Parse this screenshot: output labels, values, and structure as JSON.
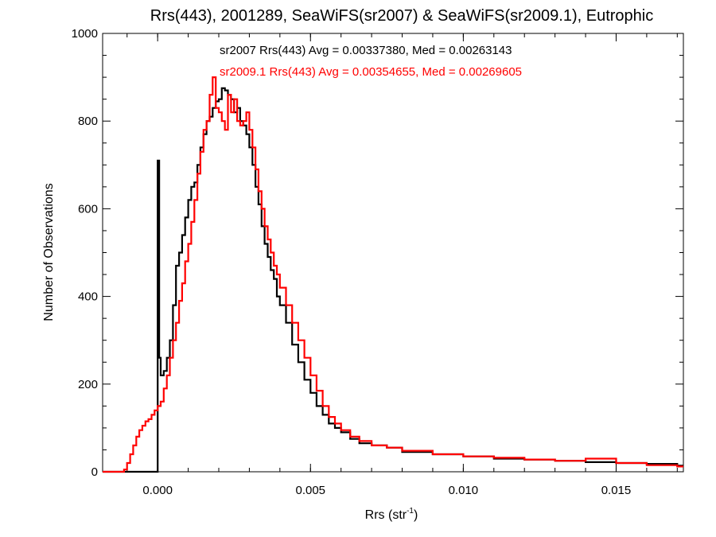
{
  "chart_data": {
    "type": "histogram",
    "title": "Rrs(443), 2001289, SeaWiFS(sr2007) & SeaWiFS(sr2009.1), Eutrophic",
    "xlabel": "Rrs (str",
    "xlabel_sup": "-1",
    "xlabel_close": ")",
    "ylabel": "Number of Observations",
    "xlim": [
      -0.0018,
      0.0172
    ],
    "ylim": [
      0,
      1000
    ],
    "grid": false,
    "x_ticks": [
      0.0,
      0.005,
      0.01,
      0.015
    ],
    "x_tick_labels": [
      "0.000",
      "0.005",
      "0.010",
      "0.015"
    ],
    "y_ticks": [
      0,
      200,
      400,
      600,
      800,
      1000
    ],
    "y_tick_labels": [
      "0",
      "200",
      "400",
      "600",
      "800",
      "1000"
    ],
    "annotations": [
      {
        "text": "sr2007 Rrs(443) Avg = 0.00337380, Med = 0.00263143",
        "color": "#000000"
      },
      {
        "text": "sr2009.1 Rrs(443) Avg = 0.00354655, Med = 0.00269605",
        "color": "#ff0000"
      }
    ],
    "series": [
      {
        "color": "#000000",
        "x": [
          -0.0018,
          -0.0012,
          -0.0006,
          -5e-05,
          0.0,
          5e-05,
          0.0001,
          0.0002,
          0.0003,
          0.0004,
          0.0005,
          0.0006,
          0.0007,
          0.0008,
          0.0009,
          0.001,
          0.0011,
          0.0012,
          0.0013,
          0.0014,
          0.0015,
          0.0016,
          0.0017,
          0.0018,
          0.0019,
          0.002,
          0.0021,
          0.0022,
          0.0023,
          0.0024,
          0.0025,
          0.0026,
          0.0027,
          0.0028,
          0.0029,
          0.003,
          0.0031,
          0.0032,
          0.0033,
          0.0034,
          0.0035,
          0.0036,
          0.0037,
          0.0038,
          0.0039,
          0.004,
          0.0042,
          0.0044,
          0.0046,
          0.0048,
          0.005,
          0.0052,
          0.0054,
          0.0056,
          0.0058,
          0.006,
          0.0063,
          0.0066,
          0.007,
          0.0075,
          0.008,
          0.009,
          0.01,
          0.011,
          0.012,
          0.013,
          0.014,
          0.015,
          0.016,
          0.017
        ],
        "y": [
          0,
          0,
          0,
          0,
          710,
          260,
          220,
          230,
          260,
          300,
          380,
          470,
          500,
          540,
          580,
          620,
          650,
          660,
          700,
          740,
          770,
          800,
          810,
          830,
          845,
          850,
          875,
          870,
          860,
          850,
          820,
          830,
          800,
          790,
          770,
          740,
          700,
          650,
          610,
          560,
          520,
          490,
          460,
          440,
          400,
          380,
          340,
          290,
          250,
          210,
          180,
          150,
          130,
          110,
          100,
          90,
          75,
          65,
          60,
          55,
          45,
          40,
          35,
          30,
          28,
          25,
          22,
          20,
          18,
          14
        ]
      },
      {
        "color": "#ff0000",
        "x": [
          -0.0018,
          -0.0015,
          -0.0012,
          -0.0011,
          -0.001,
          -0.0009,
          -0.0008,
          -0.0007,
          -0.0006,
          -0.0005,
          -0.0004,
          -0.0003,
          -0.0002,
          -0.0001,
          0.0,
          0.0001,
          0.0002,
          0.0003,
          0.0004,
          0.0005,
          0.0006,
          0.0007,
          0.0008,
          0.0009,
          0.001,
          0.0011,
          0.0012,
          0.0013,
          0.0014,
          0.0015,
          0.0016,
          0.0017,
          0.0018,
          0.0019,
          0.002,
          0.0021,
          0.0022,
          0.0023,
          0.0024,
          0.0025,
          0.0026,
          0.0027,
          0.0028,
          0.0029,
          0.003,
          0.0031,
          0.0032,
          0.0033,
          0.0034,
          0.0035,
          0.0036,
          0.0037,
          0.0038,
          0.0039,
          0.004,
          0.0042,
          0.0044,
          0.0046,
          0.0048,
          0.005,
          0.0052,
          0.0054,
          0.0056,
          0.0058,
          0.006,
          0.0063,
          0.0066,
          0.007,
          0.0075,
          0.008,
          0.009,
          0.01,
          0.011,
          0.012,
          0.013,
          0.014,
          0.015,
          0.016,
          0.017
        ],
        "y": [
          0,
          0,
          0,
          5,
          20,
          40,
          60,
          80,
          95,
          105,
          115,
          120,
          130,
          140,
          150,
          160,
          190,
          220,
          260,
          300,
          340,
          390,
          430,
          480,
          520,
          570,
          620,
          680,
          730,
          780,
          800,
          860,
          900,
          830,
          820,
          800,
          780,
          860,
          820,
          850,
          800,
          790,
          800,
          820,
          780,
          740,
          690,
          640,
          600,
          560,
          530,
          500,
          470,
          450,
          420,
          380,
          340,
          300,
          260,
          220,
          185,
          150,
          125,
          110,
          95,
          80,
          70,
          60,
          55,
          48,
          40,
          35,
          32,
          28,
          25,
          30,
          20,
          15,
          12
        ]
      }
    ]
  }
}
